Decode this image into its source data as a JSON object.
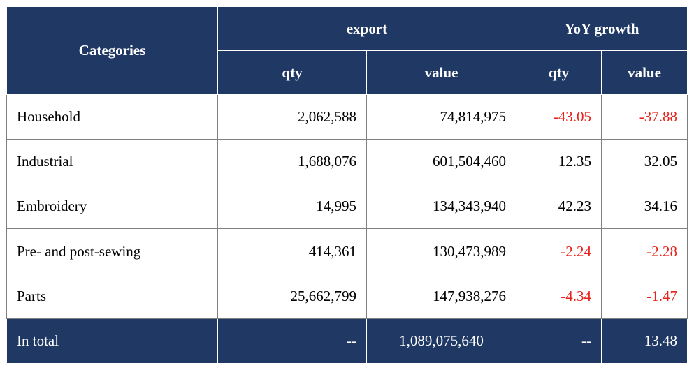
{
  "table": {
    "headers": {
      "categories": "Categories",
      "export": "export",
      "yoy_growth": "YoY growth",
      "export_qty": "qty",
      "export_value": "value",
      "yoy_qty": "qty",
      "yoy_value": "value"
    },
    "rows": [
      {
        "category": "Household",
        "export_qty": "2,062,588",
        "export_value": "74,814,975",
        "yoy_qty": "-43.05",
        "yoy_value": "-37.88"
      },
      {
        "category": "Industrial",
        "export_qty": "1,688,076",
        "export_value": "601,504,460",
        "yoy_qty": "12.35",
        "yoy_value": "32.05"
      },
      {
        "category": "Embroidery",
        "export_qty": "14,995",
        "export_value": "134,343,940",
        "yoy_qty": "42.23",
        "yoy_value": "34.16"
      },
      {
        "category": "Pre- and post-sewing",
        "export_qty": "414,361",
        "export_value": "130,473,989",
        "yoy_qty": "-2.24",
        "yoy_value": "-2.28"
      },
      {
        "category": "Parts",
        "export_qty": "25,662,799",
        "export_value": "147,938,276",
        "yoy_qty": "-4.34",
        "yoy_value": "-1.47"
      }
    ],
    "total": {
      "category": "In total",
      "export_qty": "--",
      "export_value": "1,089,075,640",
      "yoy_qty": "--",
      "yoy_value": "13.48"
    }
  },
  "colors": {
    "header_bg": "#1f3864",
    "header_text": "#ffffff",
    "negative_text": "#e8231e",
    "border": "#7f7f7f"
  }
}
